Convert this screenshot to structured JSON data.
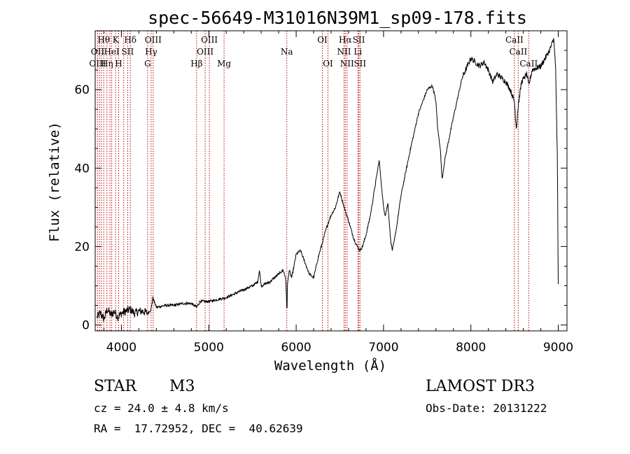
{
  "chart_data": {
    "type": "line",
    "title": "spec-56649-M31016N39M1_sp09-178.fits",
    "xlabel": "Wavelength (Å)",
    "ylabel": "Flux (relative)",
    "xlim": [
      3700,
      9100
    ],
    "ylim": [
      -1.5,
      75
    ],
    "xticks": [
      4000,
      5000,
      6000,
      7000,
      8000,
      9000
    ],
    "yticks": [
      0,
      20,
      40,
      60
    ],
    "series": [
      {
        "name": "spectrum",
        "x": [
          3720,
          3760,
          3800,
          3840,
          3880,
          3920,
          3960,
          4000,
          4050,
          4100,
          4150,
          4200,
          4250,
          4300,
          4340,
          4360,
          4400,
          4500,
          4600,
          4700,
          4800,
          4861,
          4900,
          5000,
          5100,
          5200,
          5300,
          5400,
          5500,
          5560,
          5580,
          5600,
          5650,
          5700,
          5800,
          5850,
          5880,
          5895,
          5900,
          5920,
          5950,
          6000,
          6050,
          6100,
          6150,
          6200,
          6250,
          6300,
          6350,
          6400,
          6450,
          6500,
          6550,
          6563,
          6580,
          6620,
          6660,
          6700,
          6730,
          6760,
          6800,
          6850,
          6900,
          6950,
          7000,
          7020,
          7050,
          7080,
          7100,
          7120,
          7150,
          7200,
          7300,
          7400,
          7500,
          7560,
          7600,
          7620,
          7650,
          7670,
          7700,
          7800,
          7900,
          8000,
          8100,
          8150,
          8200,
          8250,
          8300,
          8400,
          8450,
          8498,
          8520,
          8542,
          8580,
          8640,
          8662,
          8700,
          8800,
          8850,
          8900,
          8950,
          8970,
          8990,
          9000
        ],
        "values": [
          2,
          3,
          1.5,
          4,
          2.5,
          3.5,
          2,
          3,
          3.5,
          4,
          3,
          3.5,
          3.5,
          3,
          4,
          7,
          4.5,
          5,
          5,
          5.5,
          5.5,
          4.5,
          6,
          6,
          6.5,
          7,
          8,
          9,
          10,
          11,
          14,
          10,
          10.5,
          11,
          13,
          14,
          12,
          3,
          10,
          14,
          12,
          18,
          19,
          16,
          13,
          12,
          17,
          21,
          25,
          28,
          30,
          34,
          30,
          29,
          28,
          25,
          22,
          20,
          19,
          20,
          23,
          28,
          35,
          42,
          30,
          28,
          31,
          22,
          19,
          21,
          25,
          33,
          44,
          54,
          60,
          61,
          57,
          50,
          45,
          37,
          42,
          53,
          63,
          68,
          66,
          67,
          65,
          62,
          64,
          62,
          60,
          57,
          50,
          56,
          62,
          64,
          61,
          65,
          66,
          68,
          70,
          73,
          65,
          42,
          10
        ]
      }
    ],
    "line_markers": {
      "wavelengths": [
        3727,
        3750,
        3771,
        3798,
        3835,
        3869,
        3889,
        3934,
        3968,
        4026,
        4072,
        4102,
        4300,
        4340,
        4363,
        4861,
        4959,
        5007,
        5175,
        5893,
        6300,
        6364,
        6548,
        6563,
        6583,
        6707,
        6717,
        6731,
        8498,
        8542,
        8662
      ],
      "labels": [
        {
          "text": "Hθ",
          "row": 1,
          "wavelength": 3798
        },
        {
          "text": "K",
          "row": 1,
          "wavelength": 3934
        },
        {
          "text": "Hδ",
          "row": 1,
          "wavelength": 4102
        },
        {
          "text": "OIII",
          "row": 1,
          "wavelength": 4363
        },
        {
          "text": "OIII",
          "row": 1,
          "wavelength": 5007
        },
        {
          "text": "OI",
          "row": 1,
          "wavelength": 6300
        },
        {
          "text": "Hα",
          "row": 1,
          "wavelength": 6563
        },
        {
          "text": "SII",
          "row": 1,
          "wavelength": 6717
        },
        {
          "text": "CaII",
          "row": 1,
          "wavelength": 8498
        },
        {
          "text": "OII",
          "row": 2,
          "wavelength": 3727
        },
        {
          "text": "HeI",
          "row": 2,
          "wavelength": 3889
        },
        {
          "text": "SII",
          "row": 2,
          "wavelength": 4072
        },
        {
          "text": "Hγ",
          "row": 2,
          "wavelength": 4340
        },
        {
          "text": "OIII",
          "row": 2,
          "wavelength": 4959
        },
        {
          "text": "Na",
          "row": 2,
          "wavelength": 5893
        },
        {
          "text": "NII",
          "row": 2,
          "wavelength": 6548
        },
        {
          "text": "Li",
          "row": 2,
          "wavelength": 6707
        },
        {
          "text": "CaII",
          "row": 2,
          "wavelength": 8542
        },
        {
          "text": "OIII",
          "row": 3,
          "wavelength": 3727
        },
        {
          "text": "Hη",
          "row": 3,
          "wavelength": 3835
        },
        {
          "text": "H",
          "row": 3,
          "wavelength": 3968
        },
        {
          "text": "G",
          "row": 3,
          "wavelength": 4300
        },
        {
          "text": "Hβ",
          "row": 3,
          "wavelength": 4861
        },
        {
          "text": "Mg",
          "row": 3,
          "wavelength": 5175
        },
        {
          "text": "OI",
          "row": 3,
          "wavelength": 6364
        },
        {
          "text": "NII",
          "row": 3,
          "wavelength": 6583
        },
        {
          "text": "SII",
          "row": 3,
          "wavelength": 6731
        },
        {
          "text": "CaII",
          "row": 3,
          "wavelength": 8662
        }
      ]
    }
  },
  "info": {
    "object_class": "STAR",
    "subclass": "M3",
    "survey": "LAMOST DR3",
    "redshift": "cz = 24.0 ± 4.8 km/s",
    "obs_date": "Obs-Date: 20131222",
    "coords": "RA =  17.72952, DEC =  40.62639"
  },
  "colors": {
    "marker_line": "#c00000",
    "spectrum": "#000000"
  }
}
